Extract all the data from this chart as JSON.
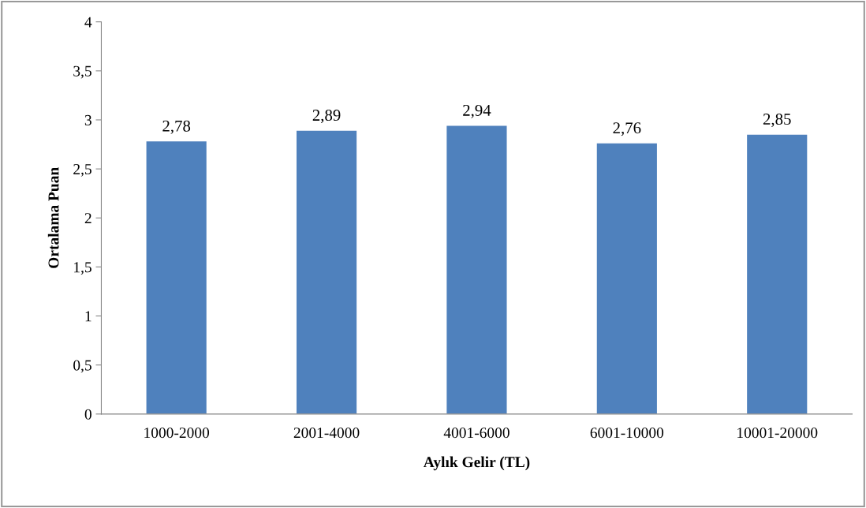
{
  "chart_data": {
    "type": "bar",
    "xlabel": "Aylık Gelir (TL)",
    "ylabel": "Ortalama Puan",
    "categories": [
      "1000-2000",
      "2001-4000",
      "4001-6000",
      "6001-10000",
      "10001-20000"
    ],
    "values": [
      2.78,
      2.89,
      2.94,
      2.76,
      2.85
    ],
    "value_labels": [
      "2,78",
      "2,89",
      "2,94",
      "2,76",
      "2,85"
    ],
    "color": "#4f81bd",
    "ylim": [
      0,
      4
    ],
    "yticks": [
      0,
      {
        "value": 0.5,
        "label": "0,5"
      },
      1,
      {
        "value": 1.5,
        "label": "1,5"
      },
      2,
      {
        "value": 2.5,
        "label": "2,5"
      },
      3,
      {
        "value": 3.5,
        "label": "3,5"
      },
      4
    ],
    "grid": false,
    "legend": false
  }
}
